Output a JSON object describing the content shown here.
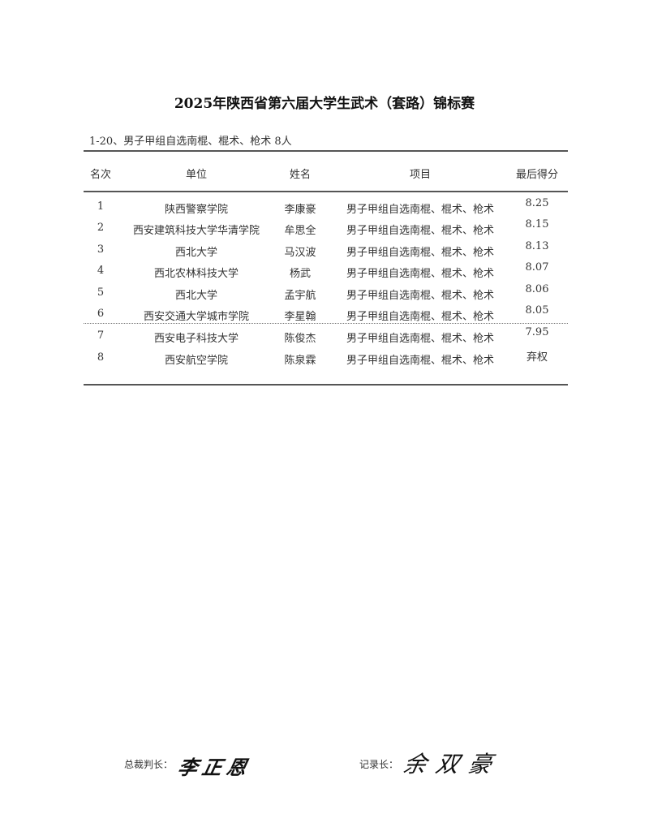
{
  "title": "2025年陕西省第六届大学生武术（套路）锦标赛",
  "subtitle": "1-20、男子甲组自选南棍、棍术、枪术 8人",
  "table": {
    "headers": [
      "名次",
      "单位",
      "姓名",
      "项目",
      "最后得分"
    ],
    "rows": [
      [
        "1",
        "陕西警察学院",
        "李康豪",
        "男子甲组自选南棍、棍术、枪术",
        "8.25"
      ],
      [
        "2",
        "西安建筑科技大学华清学院",
        "牟思全",
        "男子甲组自选南棍、棍术、枪术",
        "8.15"
      ],
      [
        "3",
        "西北大学",
        "马汉波",
        "男子甲组自选南棍、棍术、枪术",
        "8.13"
      ],
      [
        "4",
        "西北农林科技大学",
        "杨武",
        "男子甲组自选南棍、棍术、枪术",
        "8.07"
      ],
      [
        "5",
        "西北大学",
        "孟宇航",
        "男子甲组自选南棍、棍术、枪术",
        "8.06"
      ],
      [
        "6",
        "西安交通大学城市学院",
        "李星翰",
        "男子甲组自选南棍、棍术、枪术",
        "8.05"
      ],
      [
        "7",
        "西安电子科技大学",
        "陈俊杰",
        "男子甲组自选南棍、棍术、枪术",
        "7.95"
      ],
      [
        "8",
        "西安航空学院",
        "陈泉霖",
        "男子甲组自选南棍、棍术、枪术",
        "弃权"
      ]
    ]
  },
  "footer": {
    "chief_judge_label": "总裁判长：",
    "chief_judge_signature": "李正恩",
    "recorder_label": "记录长：",
    "recorder_signature": "余双豪"
  }
}
